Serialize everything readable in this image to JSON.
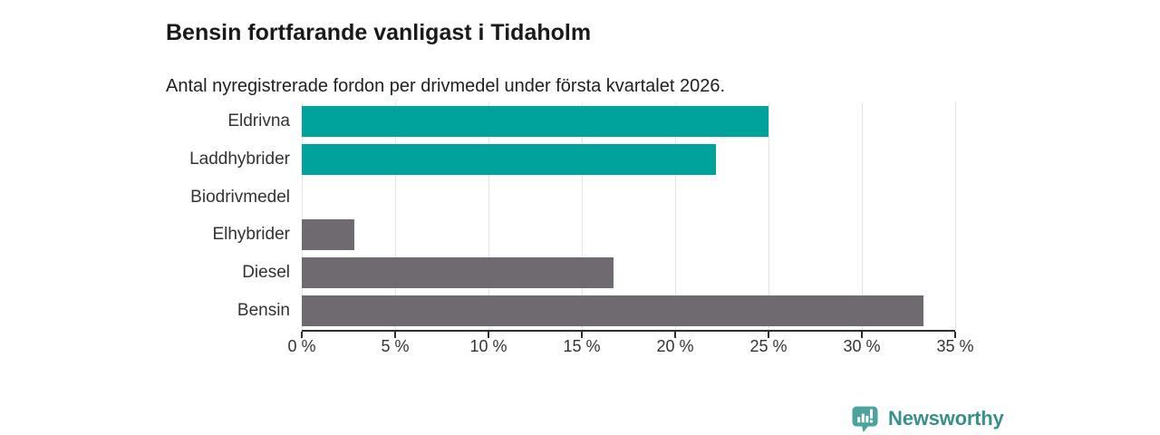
{
  "chart_data": {
    "type": "bar",
    "orientation": "horizontal",
    "title": "Bensin fortfarande vanligast i Tidaholm",
    "subtitle": "Antal nyregistrerade fordon per drivmedel under första kvartalet 2026.",
    "categories": [
      "Eldrivna",
      "Laddhybrider",
      "Biodrivmedel",
      "Elhybrider",
      "Diesel",
      "Bensin"
    ],
    "values": [
      25,
      22.2,
      0,
      2.8,
      16.7,
      33.3
    ],
    "unit": "%",
    "bar_colors": [
      "#00a39b",
      "#00a39b",
      "#6e6a70",
      "#6e6a70",
      "#6e6a70",
      "#6e6a70"
    ],
    "xlabel": "",
    "ylabel": "",
    "xlim": [
      0,
      35
    ],
    "x_ticks": [
      0,
      5,
      10,
      15,
      20,
      25,
      30,
      35
    ],
    "x_tick_labels": [
      "0 %",
      "5 %",
      "10 %",
      "15 %",
      "20 %",
      "25 %",
      "30 %",
      "35 %"
    ],
    "grid": "vertical-gridlines-on",
    "legend": "none"
  },
  "colors": {
    "accent_teal": "#00a39b",
    "bar_gray": "#6e6a70",
    "gridline": "#e4e4e4",
    "axis": "#2d2d2d",
    "title_text": "#1a1a1a",
    "body_text": "#333333",
    "brand_teal": "#37918b",
    "brand_icon_teal": "#4aa39c"
  },
  "footer": {
    "brand": "Newsworthy",
    "logo_icon": "newsworthy-speech-bubble-barchart-icon"
  }
}
